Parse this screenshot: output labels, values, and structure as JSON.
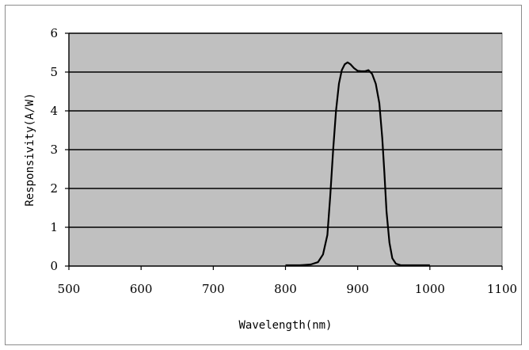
{
  "chart_data": {
    "type": "line",
    "title": "",
    "xlabel": "Wavelength(nm)",
    "ylabel": "Responsivity(A/W)",
    "xlim": [
      500,
      1100
    ],
    "ylim": [
      0,
      6
    ],
    "x_ticks": [
      500,
      600,
      700,
      800,
      900,
      1000,
      1100
    ],
    "y_ticks": [
      0,
      1,
      2,
      3,
      4,
      5,
      6
    ],
    "grid": "horizontal",
    "legend": "none",
    "colors": {
      "plot_background": "#c0c0c0",
      "line": "#000000",
      "grid": "#000000"
    },
    "series": [
      {
        "x": [
          800,
          820,
          835,
          845,
          852,
          858,
          862,
          866,
          870,
          874,
          878,
          882,
          886,
          890,
          895,
          900,
          905,
          910,
          915,
          920,
          925,
          930,
          934,
          937,
          940,
          944,
          948,
          953,
          960,
          970,
          985,
          1000
        ],
        "y": [
          0.02,
          0.02,
          0.04,
          0.1,
          0.3,
          0.8,
          1.8,
          3.0,
          4.0,
          4.7,
          5.05,
          5.2,
          5.25,
          5.2,
          5.1,
          5.03,
          5.02,
          5.02,
          5.05,
          4.95,
          4.7,
          4.2,
          3.3,
          2.4,
          1.4,
          0.6,
          0.2,
          0.06,
          0.02,
          0.02,
          0.02,
          0.02
        ]
      }
    ]
  }
}
